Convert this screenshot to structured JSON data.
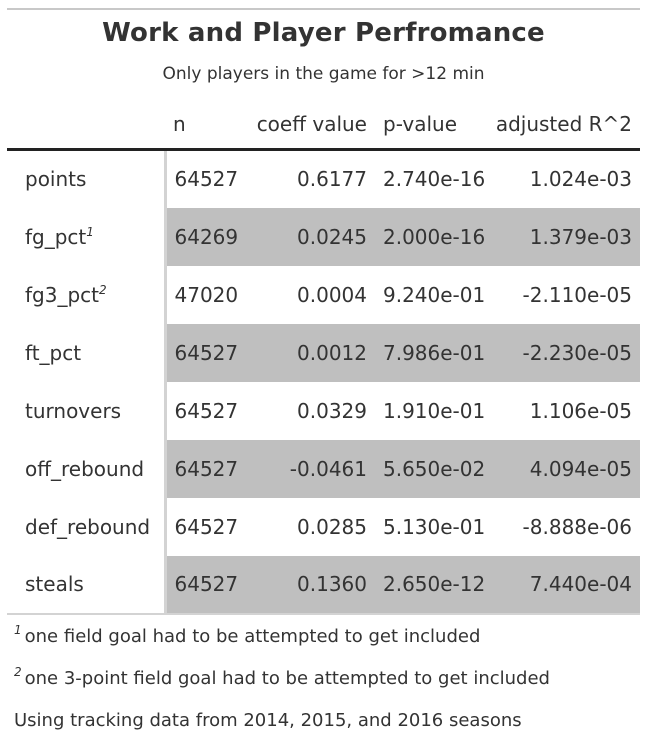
{
  "title": "Work and Player Perfromance",
  "subtitle": "Only players in the game for >12 min",
  "columns": {
    "n": "n",
    "coeff": "coeff value",
    "p": "p-value",
    "r2": "adjusted R^2"
  },
  "rows": [
    {
      "label": "points",
      "mark": "",
      "n": "64527",
      "coeff": "0.6177",
      "p": "2.740e-16",
      "r2": "1.024e-03"
    },
    {
      "label": "fg_pct",
      "mark": "1",
      "n": "64269",
      "coeff": "0.0245",
      "p": "2.000e-16",
      "r2": "1.379e-03"
    },
    {
      "label": "fg3_pct",
      "mark": "2",
      "n": "47020",
      "coeff": "0.0004",
      "p": "9.240e-01",
      "r2": "-2.110e-05"
    },
    {
      "label": "ft_pct",
      "mark": "",
      "n": "64527",
      "coeff": "0.0012",
      "p": "7.986e-01",
      "r2": "-2.230e-05"
    },
    {
      "label": "turnovers",
      "mark": "",
      "n": "64527",
      "coeff": "0.0329",
      "p": "1.910e-01",
      "r2": "1.106e-05"
    },
    {
      "label": "off_rebound",
      "mark": "",
      "n": "64527",
      "coeff": "-0.0461",
      "p": "5.650e-02",
      "r2": "4.094e-05"
    },
    {
      "label": "def_rebound",
      "mark": "",
      "n": "64527",
      "coeff": "0.0285",
      "p": "5.130e-01",
      "r2": "-8.888e-06"
    },
    {
      "label": "steals",
      "mark": "",
      "n": "64527",
      "coeff": "0.1360",
      "p": "2.650e-12",
      "r2": "7.440e-04"
    }
  ],
  "footnotes": [
    {
      "mark": "1",
      "text": "one field goal had to be attempted to get included"
    },
    {
      "mark": "2",
      "text": "one 3-point field goal had to be attempted to get included"
    }
  ],
  "source_note": "Using tracking data from 2014, 2015, and 2016 seasons",
  "colors": {
    "shade": "#bfbfbf",
    "text": "#333333",
    "rule": "#222222"
  }
}
